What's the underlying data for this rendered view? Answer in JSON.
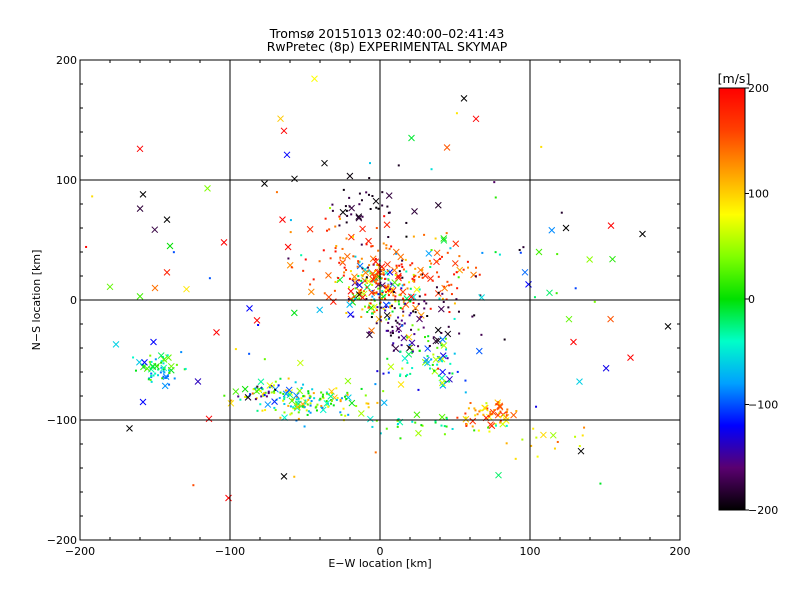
{
  "chart_data": {
    "type": "scatter",
    "title": "Tromsø 20151013 02:40:00–02:41:43",
    "subtitle": "RwPretec (8p) EXPERIMENTAL SKYMAP",
    "xlabel": "E−W location [km]",
    "ylabel": "N−S location [km]",
    "xlim": [
      -200,
      200
    ],
    "ylim": [
      -200,
      200
    ],
    "xticks": [
      -200,
      -100,
      0,
      100,
      200
    ],
    "yticks": [
      -200,
      -100,
      0,
      100,
      200
    ],
    "xtick_labels": [
      "−200",
      "−100",
      "0",
      "100",
      "200"
    ],
    "ytick_labels": [
      "−200",
      "−100",
      "0",
      "100",
      "200"
    ],
    "grid": true,
    "grid_lines": [
      -100,
      0,
      100
    ],
    "colorbar": {
      "label": "[m/s]",
      "range": [
        -200,
        200
      ],
      "ticks": [
        200,
        100,
        0,
        -100,
        -200
      ],
      "tick_labels": [
        "200",
        "100",
        "0",
        "−100",
        "−200"
      ],
      "colors": [
        "#000000",
        "#5a0070",
        "#0000ff",
        "#00a0ff",
        "#00ffc8",
        "#00e000",
        "#80ff00",
        "#ffff00",
        "#ffa000",
        "#ff4000",
        "#ff0000"
      ]
    },
    "clusters": [
      {
        "cx": 0,
        "cy": 8,
        "sx": 12,
        "sy": 12,
        "n": 180,
        "vmin": -200,
        "vmax": 200
      },
      {
        "cx": 20,
        "cy": 22,
        "sx": 22,
        "sy": 20,
        "n": 100,
        "vmin": 100,
        "vmax": 200
      },
      {
        "cx": -12,
        "cy": 28,
        "sx": 22,
        "sy": 18,
        "n": 80,
        "vmin": 120,
        "vmax": 200
      },
      {
        "cx": -10,
        "cy": 80,
        "sx": 18,
        "sy": 12,
        "n": 40,
        "vmin": -200,
        "vmax": -170
      },
      {
        "cx": 18,
        "cy": -22,
        "sx": 12,
        "sy": 10,
        "n": 50,
        "vmin": -200,
        "vmax": -140
      },
      {
        "cx": 45,
        "cy": -8,
        "sx": 14,
        "sy": 12,
        "n": 25,
        "vmin": -200,
        "vmax": -160
      },
      {
        "cx": 30,
        "cy": -50,
        "sx": 12,
        "sy": 10,
        "n": 70,
        "vmin": -150,
        "vmax": 60
      },
      {
        "cx": -48,
        "cy": -85,
        "sx": 18,
        "sy": 7,
        "n": 150,
        "vmin": -90,
        "vmax": 130
      },
      {
        "cx": -78,
        "cy": -78,
        "sx": 10,
        "sy": 5,
        "n": 40,
        "vmin": -200,
        "vmax": 150
      },
      {
        "cx": -148,
        "cy": -58,
        "sx": 8,
        "sy": 6,
        "n": 60,
        "vmin": -100,
        "vmax": 40
      },
      {
        "cx": 72,
        "cy": -96,
        "sx": 10,
        "sy": 6,
        "n": 60,
        "vmin": 60,
        "vmax": 180
      },
      {
        "cx": 30,
        "cy": -105,
        "sx": 22,
        "sy": 6,
        "n": 30,
        "vmin": -60,
        "vmax": 60
      },
      {
        "cx": 110,
        "cy": -115,
        "sx": 15,
        "sy": 7,
        "n": 15,
        "vmin": 40,
        "vmax": 150
      },
      {
        "cx": 85,
        "cy": 30,
        "sx": 30,
        "sy": 25,
        "n": 20,
        "vmin": -200,
        "vmax": 200
      },
      {
        "cx": 0,
        "cy": 0,
        "sx": 110,
        "sy": 80,
        "n": 70,
        "vmin": -200,
        "vmax": 200
      }
    ],
    "points": [
      {
        "x": -158,
        "y": 88,
        "v": -200
      },
      {
        "x": -142,
        "y": 67,
        "v": -200
      },
      {
        "x": -140,
        "y": 45,
        "v": 0
      },
      {
        "x": -160,
        "y": 3,
        "v": 20
      },
      {
        "x": -180,
        "y": 11,
        "v": 30
      },
      {
        "x": -150,
        "y": 10,
        "v": 140
      },
      {
        "x": -142,
        "y": 23,
        "v": 180
      },
      {
        "x": -129,
        "y": 9,
        "v": 90
      },
      {
        "x": -176,
        "y": -37,
        "v": -60
      },
      {
        "x": -114,
        "y": -99,
        "v": 200
      },
      {
        "x": -101,
        "y": -165,
        "v": 200
      },
      {
        "x": -167,
        "y": -107,
        "v": -200
      },
      {
        "x": -158,
        "y": -85,
        "v": -120
      },
      {
        "x": -157,
        "y": -52,
        "v": -120
      },
      {
        "x": -151,
        "y": -35,
        "v": -120
      },
      {
        "x": -104,
        "y": 48,
        "v": 200
      },
      {
        "x": -64,
        "y": 141,
        "v": 200
      },
      {
        "x": -62,
        "y": 121,
        "v": -120
      },
      {
        "x": -37,
        "y": 114,
        "v": -200
      },
      {
        "x": -57,
        "y": 101,
        "v": -200
      },
      {
        "x": -77,
        "y": 97,
        "v": -200
      },
      {
        "x": -65,
        "y": 67,
        "v": 200
      },
      {
        "x": -82,
        "y": -17,
        "v": 200
      },
      {
        "x": -87,
        "y": -7,
        "v": -120
      },
      {
        "x": -109,
        "y": -27,
        "v": 200
      },
      {
        "x": 64,
        "y": 151,
        "v": 200
      },
      {
        "x": 21,
        "y": 135,
        "v": -10
      },
      {
        "x": 56,
        "y": 168,
        "v": -200
      },
      {
        "x": 175,
        "y": 55,
        "v": -200
      },
      {
        "x": 154,
        "y": 62,
        "v": 200
      },
      {
        "x": 155,
        "y": 34,
        "v": 10
      },
      {
        "x": 106,
        "y": 40,
        "v": 20
      },
      {
        "x": 113,
        "y": 6,
        "v": -20
      },
      {
        "x": 124,
        "y": 60,
        "v": -200
      },
      {
        "x": 167,
        "y": -48,
        "v": 200
      },
      {
        "x": 129,
        "y": -35,
        "v": 200
      },
      {
        "x": 126,
        "y": -16,
        "v": 30
      },
      {
        "x": 133,
        "y": -68,
        "v": -60
      },
      {
        "x": 134,
        "y": -126,
        "v": -200
      },
      {
        "x": 79,
        "y": -146,
        "v": -20
      },
      {
        "x": 99,
        "y": 13,
        "v": -120
      },
      {
        "x": -160,
        "y": 126,
        "v": 200
      },
      {
        "x": -115,
        "y": 93,
        "v": 40
      },
      {
        "x": -64,
        "y": -147,
        "v": -200
      },
      {
        "x": 192,
        "y": -22,
        "v": -200
      }
    ]
  }
}
